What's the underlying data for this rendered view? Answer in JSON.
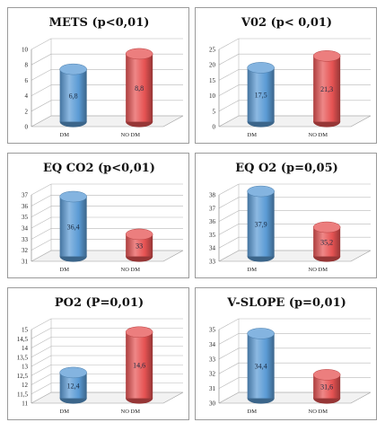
{
  "colors": {
    "dm": "#5b9bd5",
    "nodm": "#e65353"
  },
  "chart_data": [
    {
      "type": "bar",
      "title": "METS (p<0,01)",
      "categories": [
        "DM",
        "NO DM"
      ],
      "values": [
        6.8,
        8.8
      ],
      "data_labels": [
        "6,8",
        "8,8"
      ],
      "ylim": [
        0,
        10
      ],
      "yticks": [
        "0",
        "2",
        "4",
        "6",
        "8",
        "10"
      ],
      "grid": true
    },
    {
      "type": "bar",
      "title": "V02 (p< 0,01)",
      "categories": [
        "DM",
        "NO DM"
      ],
      "values": [
        17.5,
        21.3
      ],
      "data_labels": [
        "17,5",
        "21,3"
      ],
      "ylim": [
        0,
        25
      ],
      "yticks": [
        "0",
        "5",
        "10",
        "15",
        "20",
        "25"
      ],
      "grid": true
    },
    {
      "type": "bar",
      "title": "EQ CO2 (p<0,01)",
      "categories": [
        "DM",
        "NO DM"
      ],
      "values": [
        36.4,
        33
      ],
      "data_labels": [
        "36,4",
        "33"
      ],
      "ylim": [
        31,
        37
      ],
      "yticks": [
        "31",
        "32",
        "33",
        "34",
        "35",
        "36",
        "37"
      ],
      "grid": true
    },
    {
      "type": "bar",
      "title": "EQ O2 (p=0,05)",
      "categories": [
        "DM",
        "NO DM"
      ],
      "values": [
        37.9,
        35.2
      ],
      "data_labels": [
        "37,9",
        "35,2"
      ],
      "ylim": [
        33,
        38
      ],
      "yticks": [
        "33",
        "34",
        "35",
        "36",
        "37",
        "38"
      ],
      "grid": true
    },
    {
      "type": "bar",
      "title": "PO2 (P=0,01)",
      "categories": [
        "DM",
        "NO DM"
      ],
      "values": [
        12.4,
        14.6
      ],
      "data_labels": [
        "12,4",
        "14,6"
      ],
      "ylim": [
        11,
        15
      ],
      "yticks": [
        "11",
        "11,5",
        "12",
        "12,5",
        "13",
        "13,5",
        "14",
        "14,5",
        "15"
      ],
      "grid": true
    },
    {
      "type": "bar",
      "title": "V-SLOPE (p=0,01)",
      "categories": [
        "DM",
        "NO DM"
      ],
      "values": [
        34.4,
        31.6
      ],
      "data_labels": [
        "34,4",
        "31,6"
      ],
      "ylim": [
        30,
        35
      ],
      "yticks": [
        "30",
        "31",
        "32",
        "33",
        "34",
        "35"
      ],
      "grid": true
    }
  ]
}
